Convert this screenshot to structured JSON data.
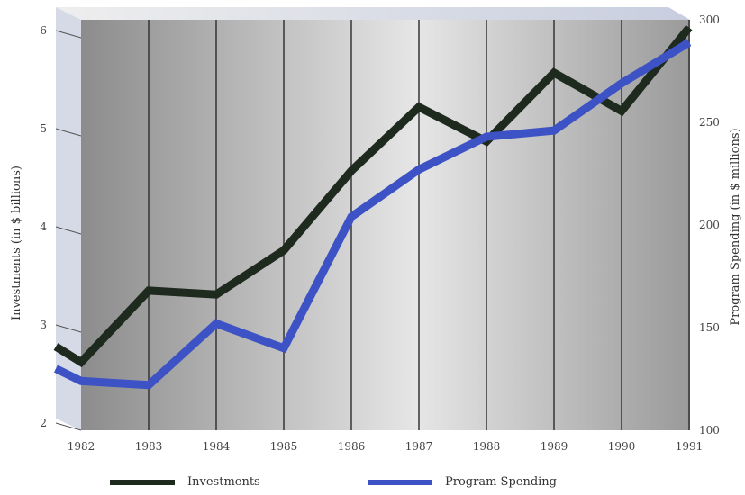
{
  "chart_data": {
    "type": "line",
    "title": "",
    "x": [
      "1982",
      "1983",
      "1984",
      "1985",
      "1986",
      "1987",
      "1988",
      "1989",
      "1990",
      "1991"
    ],
    "x_start_value": 2.75,
    "y_left": {
      "label": "Investments (in $ billions)",
      "ticks": [
        "2",
        "3",
        "4",
        "5",
        "6"
      ],
      "range": [
        2,
        6
      ]
    },
    "y_right": {
      "label": "Program Spending  (in $ millions)",
      "ticks": [
        "100",
        "150",
        "200",
        "250",
        "300"
      ],
      "range": [
        100,
        300
      ]
    },
    "series": [
      {
        "name": "Investments",
        "axis": "left",
        "color": "#1f2a1f",
        "start_value": 2.78,
        "values": [
          2.62,
          3.35,
          3.31,
          3.76,
          4.57,
          5.22,
          4.87,
          5.57,
          5.18,
          6.03
        ]
      },
      {
        "name": "Program Spending",
        "axis": "right",
        "color": "#3d52c4",
        "start_value": 130,
        "values": [
          124,
          122,
          152,
          140,
          204,
          227,
          243,
          246,
          269,
          289
        ]
      }
    ],
    "grid": true,
    "legend_position": "bottom"
  }
}
